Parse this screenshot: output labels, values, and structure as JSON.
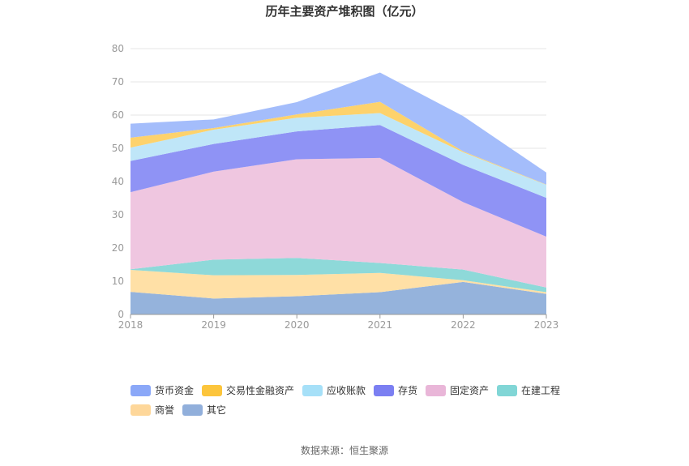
{
  "source_text": "数据来源：恒生聚源",
  "chart_data": {
    "type": "area",
    "stacked": true,
    "title": "历年主要资产堆积图（亿元）",
    "x": [
      "2018",
      "2019",
      "2020",
      "2021",
      "2022",
      "2023"
    ],
    "ylim": [
      0,
      80
    ],
    "yticks": [
      0,
      10,
      20,
      30,
      40,
      50,
      60,
      70,
      80
    ],
    "grid": true,
    "legend_position": "bottom",
    "series": [
      {
        "name": "其它",
        "color": "#95b3dc",
        "values": [
          6.8,
          4.8,
          5.5,
          6.7,
          9.8,
          6.2
        ]
      },
      {
        "name": "商誉",
        "color": "#ffe0a6",
        "values": [
          6.6,
          7.0,
          6.4,
          5.8,
          0.5,
          0.5
        ]
      },
      {
        "name": "在建工程",
        "color": "#8ed9d9",
        "values": [
          0.2,
          4.7,
          5.1,
          3.0,
          3.2,
          1.4
        ]
      },
      {
        "name": "固定资产",
        "color": "#efc6e0",
        "values": [
          23.2,
          26.5,
          29.7,
          31.6,
          20.3,
          15.3
        ]
      },
      {
        "name": "存货",
        "color": "#8f93f5",
        "values": [
          9.4,
          8.3,
          8.4,
          9.9,
          11.2,
          11.7
        ]
      },
      {
        "name": "应收账款",
        "color": "#bfe6f8",
        "values": [
          4.0,
          4.3,
          4.1,
          3.6,
          3.8,
          3.9
        ]
      },
      {
        "name": "交易性金融资产",
        "color": "#fdd26c",
        "values": [
          3.0,
          0.5,
          1.0,
          3.4,
          0.3,
          0.1
        ]
      },
      {
        "name": "货币资金",
        "color": "#a4bdfb",
        "values": [
          4.2,
          2.6,
          3.7,
          8.8,
          10.6,
          3.6
        ]
      }
    ],
    "legend": [
      {
        "name": "货币资金",
        "color": "#8ba8f8"
      },
      {
        "name": "交易性金融资产",
        "color": "#fcc53c"
      },
      {
        "name": "应收账款",
        "color": "#a6e0f8"
      },
      {
        "name": "存货",
        "color": "#7b7ff2"
      },
      {
        "name": "固定资产",
        "color": "#e9b6d8"
      },
      {
        "name": "在建工程",
        "color": "#81d6d6"
      },
      {
        "name": "商誉",
        "color": "#fed79a"
      },
      {
        "name": "其它",
        "color": "#91afdb"
      }
    ]
  }
}
